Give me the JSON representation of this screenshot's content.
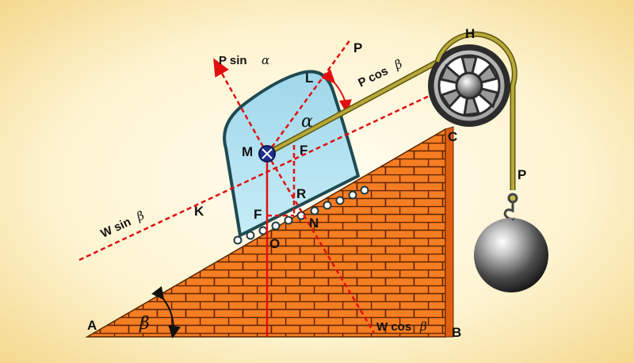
{
  "points": {
    "A": "A",
    "B": "B",
    "C": "C",
    "H": "H",
    "L": "L",
    "M": "M",
    "K": "K",
    "N": "N",
    "O": "O",
    "R": "R",
    "F1": "F",
    "F2": "F",
    "P": "P"
  },
  "forces": {
    "p_sin_text": "P sin",
    "p_sin_greek": "α",
    "p_cos_text": "P cos",
    "p_cos_greek": "β",
    "w_sin_text": "W sin",
    "w_sin_greek": "β",
    "w_cos_text": "W cos",
    "w_cos_greek": "β",
    "rope_p": "P"
  },
  "angles": {
    "alpha": "α",
    "beta": "β"
  },
  "colors": {
    "background_center": "#fffdf0",
    "background_edge": "#f6dfa0",
    "brick": "#f06a10",
    "mortar": "#5a2500",
    "block_fill": "#b6e3f2",
    "block_stroke": "#1f4a52",
    "force_line": "#e01010",
    "rope": "#a69a2a"
  }
}
